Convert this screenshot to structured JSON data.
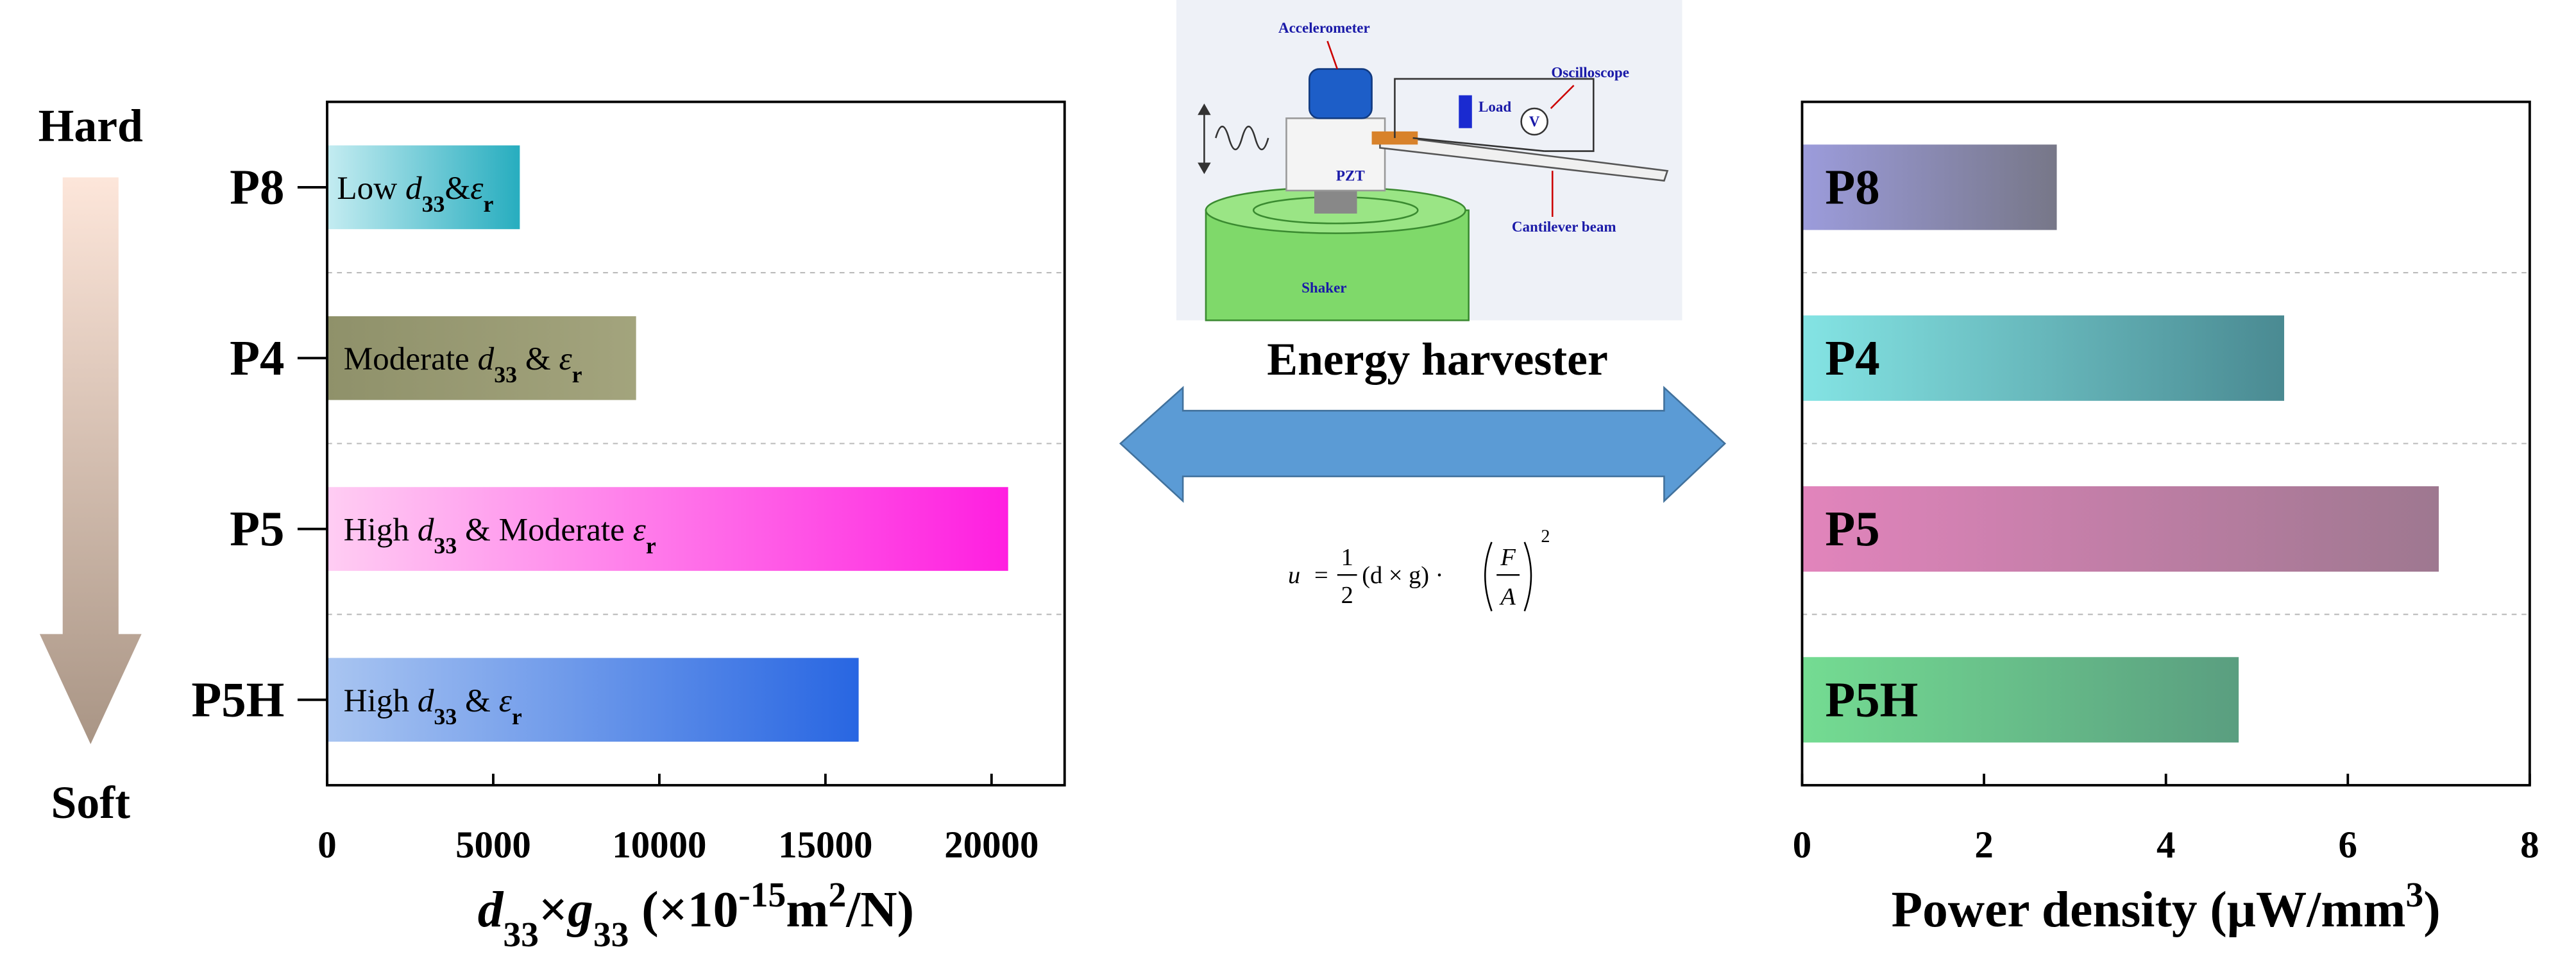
{
  "chart_data": [
    {
      "type": "bar",
      "orientation": "horizontal",
      "categories": [
        "P8",
        "P4",
        "P5",
        "P5H"
      ],
      "values": [
        5800,
        9300,
        20500,
        16000
      ],
      "bar_labels": [
        [
          [
            "Low ",
            ""
          ],
          [
            "d",
            "i"
          ],
          [
            "33",
            "sub"
          ],
          [
            "&",
            ""
          ],
          [
            "ε",
            "i"
          ],
          [
            "r",
            "sub"
          ]
        ],
        [
          [
            "Moderate ",
            ""
          ],
          [
            "d",
            "i"
          ],
          [
            "33",
            "sub"
          ],
          [
            " & ",
            ""
          ],
          [
            "ε",
            "i"
          ],
          [
            "r",
            "sub"
          ]
        ],
        [
          [
            "High ",
            ""
          ],
          [
            "d",
            "i"
          ],
          [
            "33",
            "sub"
          ],
          [
            " & Moderate ",
            ""
          ],
          [
            "ε",
            "i"
          ],
          [
            "r",
            "sub"
          ]
        ],
        [
          [
            "High ",
            ""
          ],
          [
            "d",
            "i"
          ],
          [
            "33",
            "sub"
          ],
          [
            " & ",
            ""
          ],
          [
            "ε",
            "i"
          ],
          [
            "r",
            "sub"
          ]
        ]
      ],
      "colors": [
        [
          "#c4ecf1",
          "#27adbf"
        ],
        [
          "#8f916a",
          "#a3a47d"
        ],
        [
          "#ffcdf3",
          "#ff1ee0"
        ],
        [
          "#a9c5f1",
          "#2866e2"
        ]
      ],
      "xlim": [
        0,
        22200
      ],
      "xticks": [
        0,
        5000,
        10000,
        15000,
        20000
      ],
      "xlabel": [
        [
          "d",
          "bi"
        ],
        [
          "33",
          "sub"
        ],
        [
          "×",
          "b"
        ],
        [
          "g",
          "bi"
        ],
        [
          "33",
          "sub"
        ],
        [
          " (×10",
          "b"
        ],
        [
          "-15",
          "sup"
        ],
        [
          "m",
          "b"
        ],
        [
          "2",
          "sup"
        ],
        [
          "/N)",
          "b"
        ]
      ],
      "label_position": "inside-left",
      "category_position": "outside"
    },
    {
      "type": "bar",
      "orientation": "horizontal",
      "categories": [
        "P8",
        "P4",
        "P5",
        "P5H"
      ],
      "values": [
        2.8,
        5.3,
        7.0,
        4.8
      ],
      "colors": [
        [
          "#9c9cdc",
          "#777788"
        ],
        [
          "#84e4e4",
          "#4a8a92"
        ],
        [
          "#e284bc",
          "#9e7890"
        ],
        [
          "#74dc92",
          "#5a9e80"
        ]
      ],
      "xlim": [
        0,
        8
      ],
      "xticks": [
        0,
        2,
        4,
        6,
        8
      ],
      "xlabel": [
        [
          "Power density (μW/mm",
          "b"
        ],
        [
          "3",
          "sup"
        ],
        [
          ")",
          "b"
        ]
      ],
      "category_position": "inside"
    }
  ],
  "hardness": {
    "top": "Hard",
    "bottom": "Soft"
  },
  "diagram": {
    "title": "Energy harvester",
    "accelerometer": "Accelerometer",
    "oscilloscope": "Oscilloscope",
    "load": "Load",
    "voltmeter": "V",
    "pzt": "PZT",
    "beam": "Cantilever beam",
    "shaker": "Shaker"
  },
  "formula": {
    "lhs": "u",
    "eq": "=",
    "num": "1",
    "den": "2",
    "mid": "(d × g) ·",
    "fnum": "F",
    "fden": "A",
    "exp": "2"
  }
}
